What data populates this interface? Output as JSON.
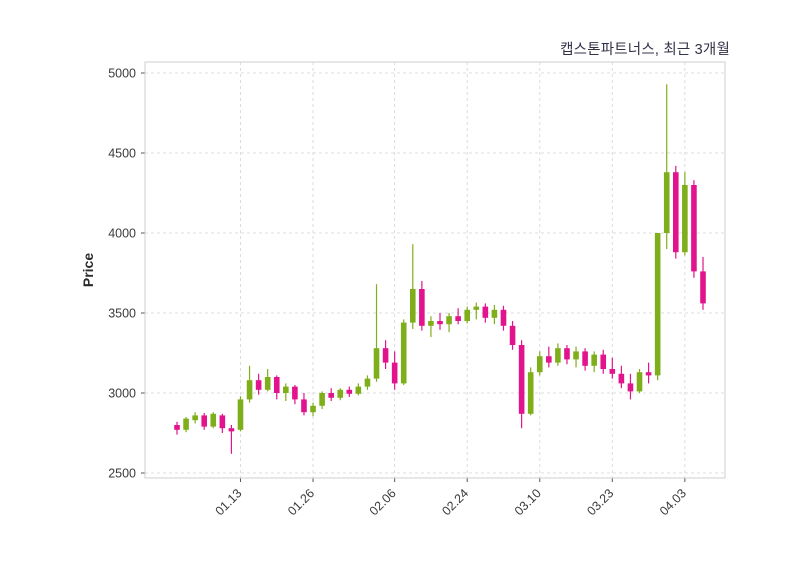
{
  "title": "캡스톤파트너스, 최근 3개월",
  "chart_data": {
    "type": "candlestick",
    "title": "캡스톤파트너스, 최근 3개월",
    "ylabel": "Price",
    "xlabel": "",
    "ylim": [
      2500,
      5000
    ],
    "grid": true,
    "grid_style": "dashed",
    "up_color": "#7fae1b",
    "down_color": "#e2148d",
    "axis_text_color": "#3a3a3a",
    "y_ticks": [
      2500,
      3000,
      3500,
      4000,
      4500,
      5000
    ],
    "x_ticks": [
      {
        "label": "01.13",
        "index": 7
      },
      {
        "label": "01.26",
        "index": 15
      },
      {
        "label": "02.06",
        "index": 24
      },
      {
        "label": "02.24",
        "index": 32
      },
      {
        "label": "03.10",
        "index": 40
      },
      {
        "label": "03.23",
        "index": 48
      },
      {
        "label": "04.03",
        "index": 56
      }
    ],
    "ohlc_order": [
      "open",
      "high",
      "low",
      "close"
    ],
    "candles": [
      [
        2800,
        2820,
        2740,
        2770
      ],
      [
        2770,
        2850,
        2755,
        2840
      ],
      [
        2830,
        2880,
        2810,
        2860
      ],
      [
        2860,
        2875,
        2770,
        2790
      ],
      [
        2790,
        2880,
        2780,
        2870
      ],
      [
        2860,
        2870,
        2750,
        2780
      ],
      [
        2780,
        2800,
        2620,
        2760
      ],
      [
        2770,
        2980,
        2760,
        2960
      ],
      [
        2960,
        3170,
        2940,
        3080
      ],
      [
        3080,
        3120,
        2990,
        3020
      ],
      [
        3020,
        3150,
        3010,
        3100
      ],
      [
        3100,
        3110,
        2960,
        3000
      ],
      [
        3000,
        3060,
        2950,
        3040
      ],
      [
        3040,
        3050,
        2930,
        2960
      ],
      [
        2960,
        3000,
        2860,
        2880
      ],
      [
        2880,
        2940,
        2855,
        2920
      ],
      [
        2920,
        3010,
        2900,
        3000
      ],
      [
        3000,
        3030,
        2950,
        2970
      ],
      [
        2970,
        3030,
        2955,
        3020
      ],
      [
        3020,
        3040,
        2975,
        2995
      ],
      [
        2995,
        3060,
        2985,
        3040
      ],
      [
        3040,
        3110,
        3020,
        3090
      ],
      [
        3090,
        3680,
        3070,
        3280
      ],
      [
        3280,
        3330,
        3150,
        3190
      ],
      [
        3190,
        3260,
        3020,
        3060
      ],
      [
        3060,
        3460,
        3050,
        3440
      ],
      [
        3440,
        3930,
        3400,
        3650
      ],
      [
        3650,
        3700,
        3390,
        3420
      ],
      [
        3420,
        3480,
        3350,
        3450
      ],
      [
        3450,
        3500,
        3395,
        3430
      ],
      [
        3430,
        3500,
        3380,
        3480
      ],
      [
        3480,
        3530,
        3430,
        3450
      ],
      [
        3450,
        3540,
        3435,
        3520
      ],
      [
        3520,
        3565,
        3460,
        3540
      ],
      [
        3540,
        3560,
        3440,
        3470
      ],
      [
        3470,
        3550,
        3430,
        3520
      ],
      [
        3520,
        3545,
        3390,
        3420
      ],
      [
        3420,
        3450,
        3270,
        3300
      ],
      [
        3300,
        3330,
        2780,
        2870
      ],
      [
        2870,
        3160,
        2860,
        3130
      ],
      [
        3130,
        3260,
        3110,
        3230
      ],
      [
        3230,
        3290,
        3160,
        3190
      ],
      [
        3190,
        3310,
        3170,
        3280
      ],
      [
        3280,
        3300,
        3180,
        3210
      ],
      [
        3210,
        3290,
        3160,
        3260
      ],
      [
        3260,
        3280,
        3140,
        3170
      ],
      [
        3170,
        3260,
        3130,
        3240
      ],
      [
        3240,
        3270,
        3120,
        3150
      ],
      [
        3150,
        3220,
        3090,
        3120
      ],
      [
        3120,
        3170,
        3030,
        3060
      ],
      [
        3060,
        3120,
        2960,
        3010
      ],
      [
        3010,
        3150,
        3000,
        3130
      ],
      [
        3130,
        3190,
        3060,
        3110
      ],
      [
        3110,
        4000,
        3080,
        4000
      ],
      [
        4000,
        4930,
        3900,
        4380
      ],
      [
        4380,
        4420,
        3840,
        3880
      ],
      [
        3880,
        4380,
        3860,
        4300
      ],
      [
        4300,
        4330,
        3720,
        3760
      ],
      [
        3760,
        3850,
        3520,
        3560
      ]
    ]
  }
}
